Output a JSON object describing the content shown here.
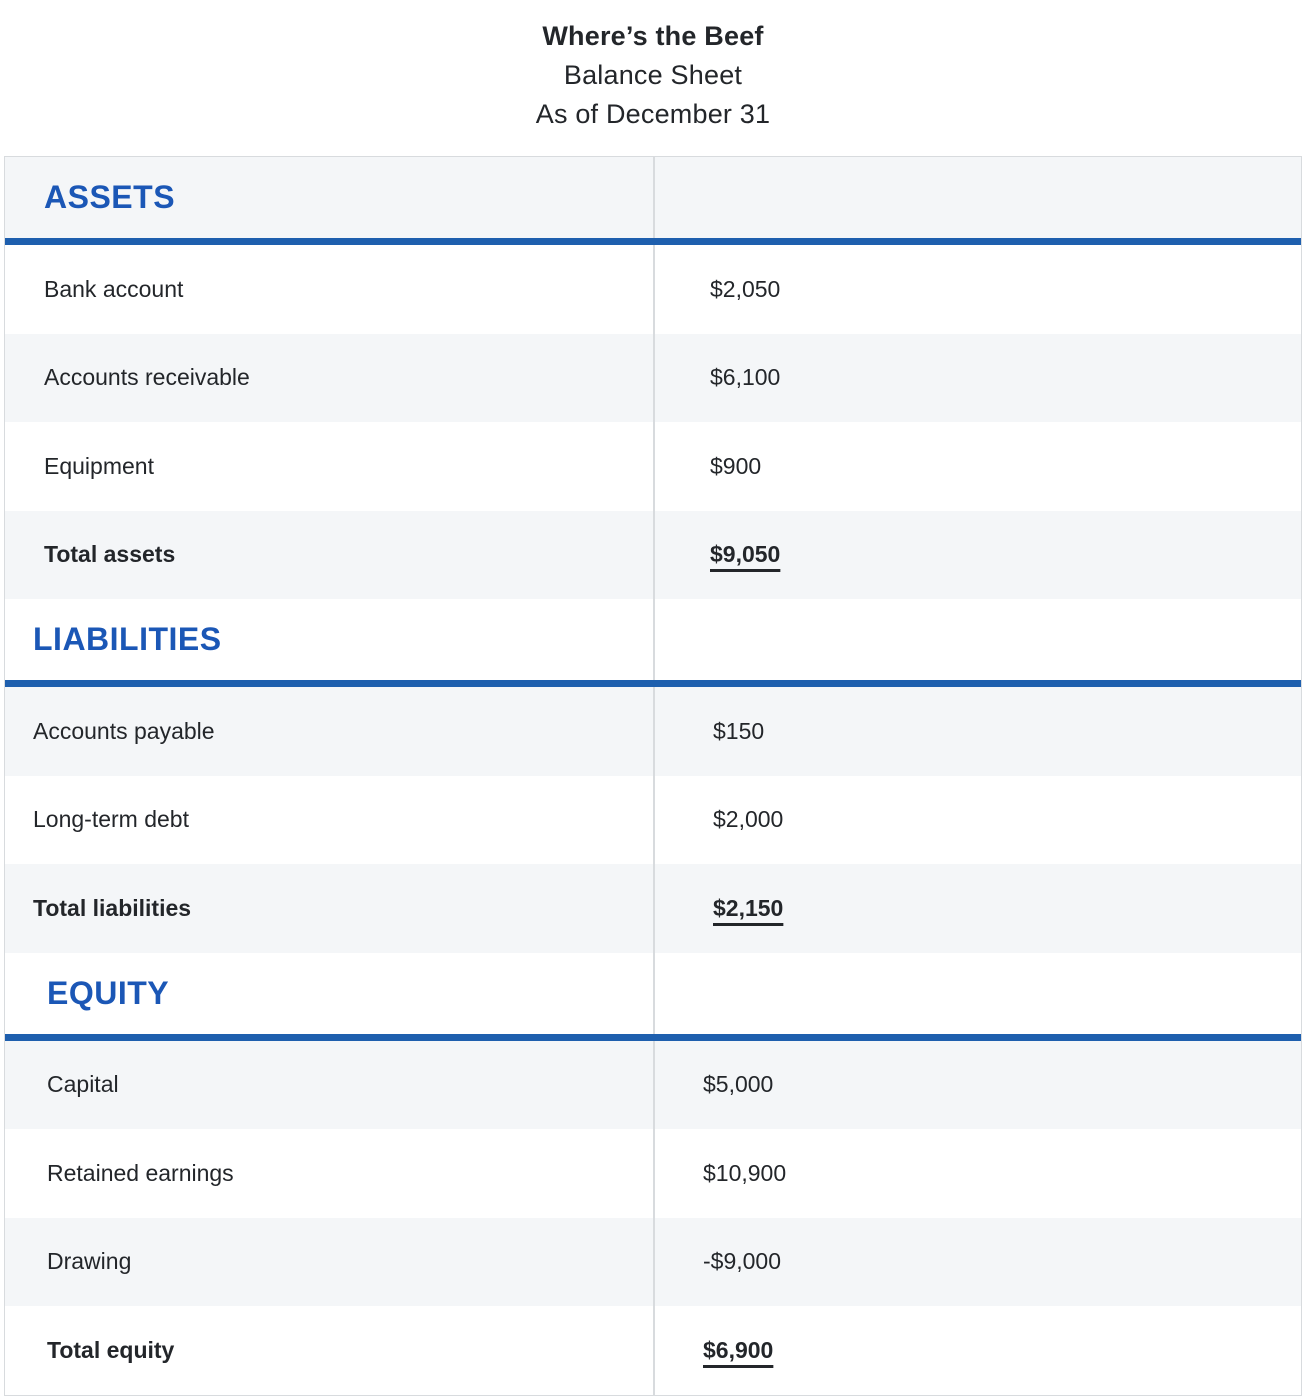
{
  "title": {
    "company": "Where’s the Beef",
    "report": "Balance Sheet",
    "as_of": "As of December 31"
  },
  "colors": {
    "section_header_text": "#1b57b6",
    "section_rule_blue": "#1e5fae",
    "alt_row_bg": "#f4f6f8",
    "divider_gray": "#d8dbde",
    "body_text": "#23262a"
  },
  "sections": [
    {
      "id": "assets",
      "header": "ASSETS",
      "rows": [
        {
          "label": "Bank account",
          "value": "$2,050"
        },
        {
          "label": "Accounts receivable",
          "value": "$6,100"
        },
        {
          "label": "Equipment",
          "value": "$900"
        }
      ],
      "total": {
        "label": "Total assets",
        "value": "$9,050"
      }
    },
    {
      "id": "liabilities",
      "header": "LIABILITIES",
      "rows": [
        {
          "label": "Accounts payable",
          "value": "$150"
        },
        {
          "label": "Long-term debt",
          "value": "$2,000"
        }
      ],
      "total": {
        "label": "Total liabilities",
        "value": "$2,150"
      }
    },
    {
      "id": "equity",
      "header": "EQUITY",
      "rows": [
        {
          "label": "Capital",
          "value": "$5,000"
        },
        {
          "label": "Retained earnings",
          "value": "$10,900"
        },
        {
          "label": "Drawing",
          "value": "-$9,000"
        }
      ],
      "total": {
        "label": "Total equity",
        "value": "$6,900"
      }
    }
  ]
}
